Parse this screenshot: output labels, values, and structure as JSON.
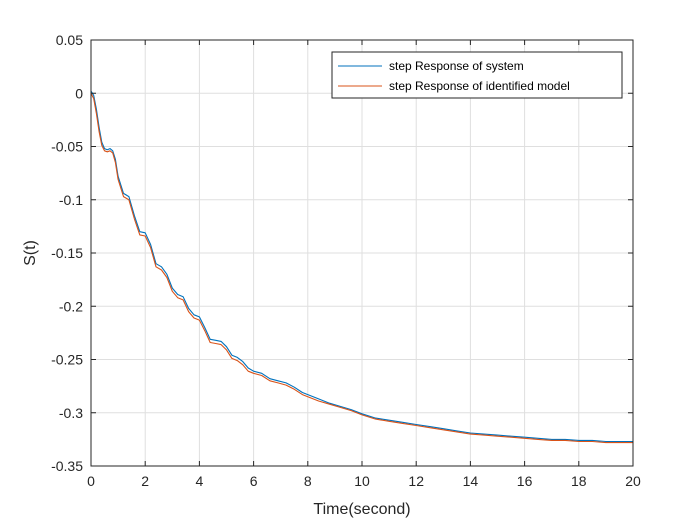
{
  "chart_data": {
    "type": "line",
    "xlabel": "Time(second)",
    "ylabel": "S(t)",
    "xlim": [
      0,
      20
    ],
    "ylim": [
      -0.35,
      0.05
    ],
    "xticks": [
      0,
      2,
      4,
      6,
      8,
      10,
      12,
      14,
      16,
      18,
      20
    ],
    "xtick_labels": [
      "0",
      "2",
      "4",
      "6",
      "8",
      "10",
      "12",
      "14",
      "16",
      "18",
      "20"
    ],
    "yticks": [
      0.05,
      0,
      -0.05,
      -0.1,
      -0.15,
      -0.2,
      -0.25,
      -0.3,
      -0.35
    ],
    "ytick_labels": [
      "0.05",
      "0",
      "-0.05",
      "-0.1",
      "-0.15",
      "-0.2",
      "-0.25",
      "-0.3",
      "-0.35"
    ],
    "grid": true,
    "legend_position": "top-right",
    "series": [
      {
        "name": "step Response of system",
        "color": "#0072BD",
        "x": [
          0,
          0.1,
          0.2,
          0.3,
          0.4,
          0.5,
          0.6,
          0.7,
          0.8,
          0.9,
          1.0,
          1.2,
          1.4,
          1.6,
          1.8,
          2.0,
          2.2,
          2.4,
          2.6,
          2.8,
          3.0,
          3.2,
          3.4,
          3.6,
          3.8,
          4.0,
          4.2,
          4.4,
          4.6,
          4.8,
          5.0,
          5.2,
          5.4,
          5.6,
          5.8,
          6.0,
          6.3,
          6.6,
          6.9,
          7.2,
          7.5,
          7.8,
          8.0,
          8.4,
          8.8,
          9.2,
          9.6,
          10.0,
          10.5,
          11.0,
          11.5,
          12.0,
          12.5,
          13.0,
          13.5,
          14.0,
          14.5,
          15.0,
          15.5,
          16.0,
          16.5,
          17.0,
          17.5,
          18.0,
          18.5,
          19.0,
          19.5,
          20.0
        ],
        "y": [
          0.002,
          -0.002,
          -0.015,
          -0.032,
          -0.046,
          -0.052,
          -0.053,
          -0.052,
          -0.054,
          -0.062,
          -0.078,
          -0.094,
          -0.097,
          -0.115,
          -0.13,
          -0.131,
          -0.142,
          -0.16,
          -0.163,
          -0.17,
          -0.183,
          -0.189,
          -0.191,
          -0.202,
          -0.208,
          -0.21,
          -0.22,
          -0.231,
          -0.232,
          -0.233,
          -0.238,
          -0.246,
          -0.248,
          -0.252,
          -0.258,
          -0.261,
          -0.263,
          -0.268,
          -0.27,
          -0.272,
          -0.276,
          -0.281,
          -0.283,
          -0.287,
          -0.291,
          -0.294,
          -0.297,
          -0.301,
          -0.305,
          -0.307,
          -0.309,
          -0.311,
          -0.313,
          -0.315,
          -0.317,
          -0.319,
          -0.32,
          -0.321,
          -0.322,
          -0.323,
          -0.324,
          -0.325,
          -0.325,
          -0.326,
          -0.326,
          -0.327,
          -0.327,
          -0.327
        ]
      },
      {
        "name": "step Response of identified model",
        "color": "#D95319",
        "x": [
          0,
          0.1,
          0.2,
          0.3,
          0.4,
          0.5,
          0.6,
          0.7,
          0.8,
          0.9,
          1.0,
          1.2,
          1.4,
          1.6,
          1.8,
          2.0,
          2.2,
          2.4,
          2.6,
          2.8,
          3.0,
          3.2,
          3.4,
          3.6,
          3.8,
          4.0,
          4.2,
          4.4,
          4.6,
          4.8,
          5.0,
          5.2,
          5.4,
          5.6,
          5.8,
          6.0,
          6.3,
          6.6,
          6.9,
          7.2,
          7.5,
          7.8,
          8.0,
          8.4,
          8.8,
          9.2,
          9.6,
          10.0,
          10.5,
          11.0,
          11.5,
          12.0,
          12.5,
          13.0,
          13.5,
          14.0,
          14.5,
          15.0,
          15.5,
          16.0,
          16.5,
          17.0,
          17.5,
          18.0,
          18.5,
          19.0,
          19.5,
          20.0
        ],
        "y": [
          0.0,
          -0.005,
          -0.019,
          -0.036,
          -0.049,
          -0.054,
          -0.055,
          -0.054,
          -0.056,
          -0.065,
          -0.081,
          -0.097,
          -0.1,
          -0.118,
          -0.133,
          -0.134,
          -0.145,
          -0.163,
          -0.166,
          -0.173,
          -0.186,
          -0.192,
          -0.194,
          -0.205,
          -0.211,
          -0.213,
          -0.223,
          -0.234,
          -0.235,
          -0.236,
          -0.241,
          -0.249,
          -0.251,
          -0.255,
          -0.261,
          -0.263,
          -0.265,
          -0.27,
          -0.272,
          -0.274,
          -0.278,
          -0.283,
          -0.285,
          -0.289,
          -0.292,
          -0.295,
          -0.298,
          -0.302,
          -0.306,
          -0.308,
          -0.31,
          -0.312,
          -0.314,
          -0.316,
          -0.318,
          -0.32,
          -0.321,
          -0.322,
          -0.323,
          -0.324,
          -0.325,
          -0.326,
          -0.326,
          -0.327,
          -0.327,
          -0.328,
          -0.328,
          -0.328
        ]
      }
    ]
  }
}
